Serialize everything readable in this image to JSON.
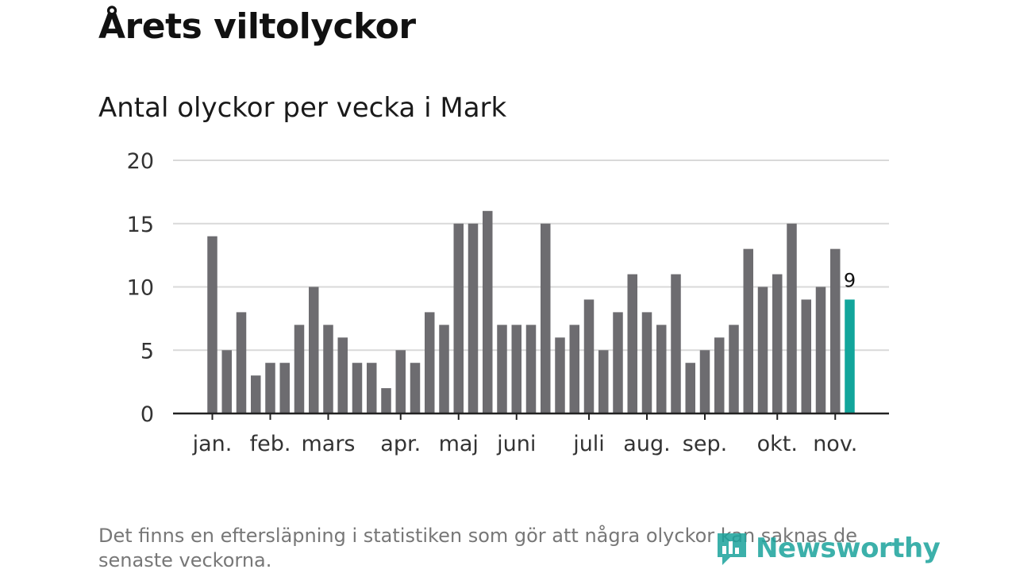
{
  "header": {
    "title": "Årets viltolyckor",
    "subtitle": "Antal olyckor per vecka i Mark"
  },
  "footnote": "Det finns en eftersläpning i statistiken som gör att några olyckor kan saknas de senaste veckorna.",
  "brand": {
    "name": "Newsworthy",
    "color": "#1ba39c"
  },
  "colors": {
    "bar": "#6d6c70",
    "highlight": "#12a59b",
    "grid": "#d9d9d9",
    "axis": "#222222"
  },
  "chart_data": {
    "type": "bar",
    "title": "Antal olyckor per vecka i Mark",
    "xlabel": "",
    "ylabel": "",
    "ylim": [
      0,
      20
    ],
    "yticks": [
      0,
      5,
      10,
      15,
      20
    ],
    "grid": true,
    "values": [
      14,
      5,
      8,
      3,
      4,
      4,
      7,
      10,
      7,
      6,
      4,
      4,
      2,
      5,
      4,
      8,
      7,
      15,
      15,
      16,
      7,
      7,
      7,
      15,
      6,
      7,
      9,
      5,
      8,
      11,
      8,
      7,
      11,
      4,
      5,
      6,
      7,
      13,
      10,
      11,
      15,
      9,
      10,
      13,
      9
    ],
    "highlight_last": true,
    "highlight_label": "9",
    "month_labels": [
      {
        "label": "jan.",
        "week_index": 0
      },
      {
        "label": "feb.",
        "week_index": 4
      },
      {
        "label": "mars",
        "week_index": 8
      },
      {
        "label": "apr.",
        "week_index": 13
      },
      {
        "label": "maj",
        "week_index": 17
      },
      {
        "label": "juni",
        "week_index": 21
      },
      {
        "label": "juli",
        "week_index": 26
      },
      {
        "label": "aug.",
        "week_index": 30
      },
      {
        "label": "sep.",
        "week_index": 34
      },
      {
        "label": "okt.",
        "week_index": 39
      },
      {
        "label": "nov.",
        "week_index": 43
      }
    ]
  }
}
